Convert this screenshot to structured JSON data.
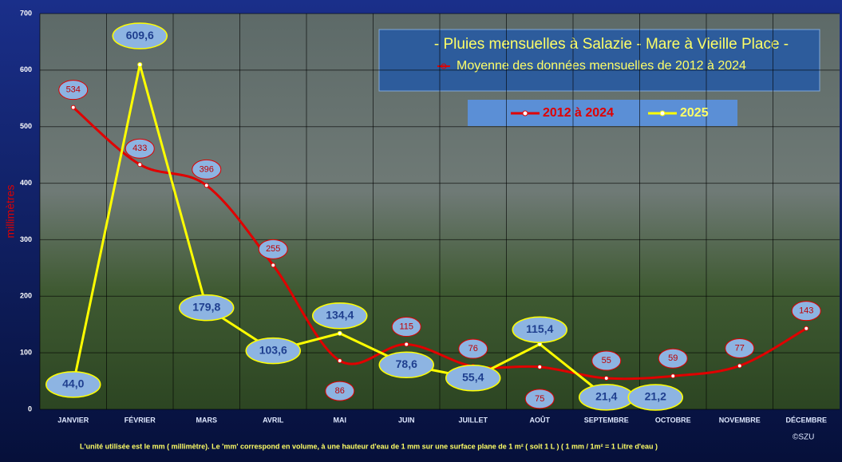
{
  "chart_data": {
    "type": "line",
    "title": "- Pluies mensuelles à Salazie - Mare à Vieille Place -",
    "subtitle": "Moyenne des données mensuelles de 2012 à 2024",
    "y_label": "millimètres",
    "note": "L'unité utilisée est le mm ( millimètre). Le 'mm' correspond en volume, à une hauteur d'eau de 1 mm sur une surface plane de 1 m² ( soit 1 L )     ( 1 mm / 1m² = 1 Litre d'eau )",
    "credit": "©SZU",
    "categories": [
      "JANVIER",
      "FÉVRIER",
      "MARS",
      "AVRIL",
      "MAI",
      "JUIN",
      "JUILLET",
      "AOÛT",
      "SEPTEMBRE",
      "OCTOBRE",
      "NOVEMBRE",
      "DÉCEMBRE"
    ],
    "series": [
      {
        "name": "2012 à 2024",
        "color": "#e00000",
        "smooth": true,
        "values": [
          534,
          433,
          396,
          255,
          86,
          115,
          76,
          75,
          55,
          59,
          77,
          143
        ]
      },
      {
        "name": "2025",
        "color": "#ffff00",
        "smooth": false,
        "values": [
          44.0,
          609.6,
          179.8,
          103.6,
          134.4,
          78.6,
          55.4,
          115.4,
          21.4,
          21.2,
          null,
          null
        ],
        "value_labels": [
          "44,0",
          "609,6",
          "179,8",
          "103,6",
          "134,4",
          "78,6",
          "55,4",
          "115,4",
          "21,4",
          "21,2",
          null,
          null
        ]
      }
    ],
    "ylim": [
      0,
      700
    ],
    "yticks": [
      0,
      100,
      200,
      300,
      400,
      500,
      600,
      700
    ],
    "grid": true
  }
}
